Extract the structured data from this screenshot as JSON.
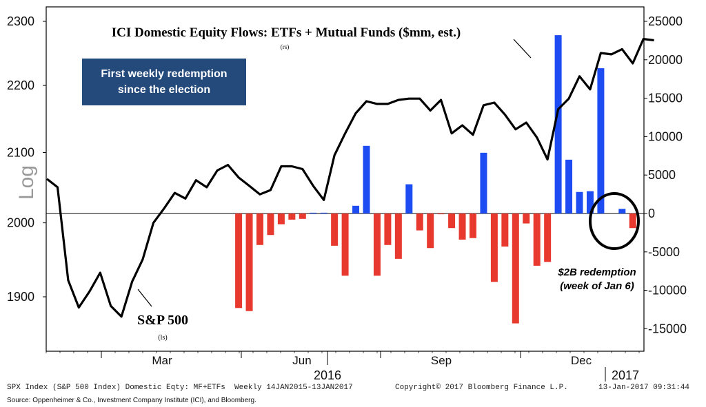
{
  "chart_data": {
    "type": "bar+line",
    "title": "ICI Domestic Equity Flows: ETFs + Mutual Funds ($mm, est.)",
    "title_axis_tag": "(rs)",
    "left_axis": {
      "label": "Log",
      "scale": "log",
      "ticks": [
        1900,
        2000,
        2100,
        2200,
        2300
      ]
    },
    "right_axis": {
      "ticks": [
        -15000,
        -10000,
        -5000,
        0,
        5000,
        10000,
        15000,
        20000,
        25000
      ]
    },
    "x_axis": {
      "month_labels": [
        "Mar",
        "Jun",
        "Sep",
        "Dec"
      ],
      "year_labels": [
        "2016",
        "2017"
      ]
    },
    "line_series": {
      "name": "S&P 500",
      "axis_tag": "(ls)",
      "values": [
        2062,
        2050,
        1922,
        1886,
        1907,
        1932,
        1888,
        1874,
        1920,
        1950,
        2000,
        2020,
        2042,
        2034,
        2060,
        2050,
        2074,
        2082,
        2064,
        2052,
        2040,
        2046,
        2080,
        2080,
        2076,
        2052,
        2032,
        2096,
        2128,
        2158,
        2176,
        2172,
        2172,
        2178,
        2180,
        2180,
        2162,
        2178,
        2128,
        2140,
        2126,
        2170,
        2174,
        2156,
        2134,
        2144,
        2122,
        2090,
        2164,
        2180,
        2214,
        2194,
        2250,
        2248,
        2256,
        2234,
        2272,
        2270
      ],
      "color": "#000000"
    },
    "bar_series": {
      "values": [
        null,
        null,
        null,
        null,
        null,
        null,
        null,
        null,
        null,
        null,
        null,
        null,
        null,
        null,
        null,
        null,
        null,
        null,
        -12300,
        -12700,
        -4100,
        -2800,
        -1400,
        -800,
        -700,
        100,
        100,
        -4200,
        -8100,
        1000,
        8800,
        -8100,
        -4100,
        -5900,
        3800,
        -2200,
        -4500,
        -100,
        -1900,
        -3400,
        -3200,
        7900,
        -8900,
        -4300,
        -14300,
        -1300,
        -6800,
        -6300,
        23200,
        7000,
        2800,
        2900,
        18900,
        null,
        600,
        -1900,
        null,
        null
      ],
      "positive_color": "#1c4cf2",
      "negative_color": "#e8392e"
    },
    "annotations": {
      "callout_box": [
        "First weekly redemption",
        "since the election"
      ],
      "redemption_note": [
        "$2B redemption",
        "(week of Jan 6)"
      ],
      "line_label": "S&P 500",
      "line_label_tag": "(ls)"
    }
  },
  "footer": {
    "left": "SPX Index (S&P 500 Index) Domestic Eqty: MF+ETFs  Weekly 14JAN2015-13JAN2017",
    "center": "Copyright© 2017 Bloomberg Finance L.P.",
    "right": "13-Jan-2017 09:31:44",
    "source": "Source: Oppenheimer & Co., Investment Company Institute (ICI), and Bloomberg."
  }
}
